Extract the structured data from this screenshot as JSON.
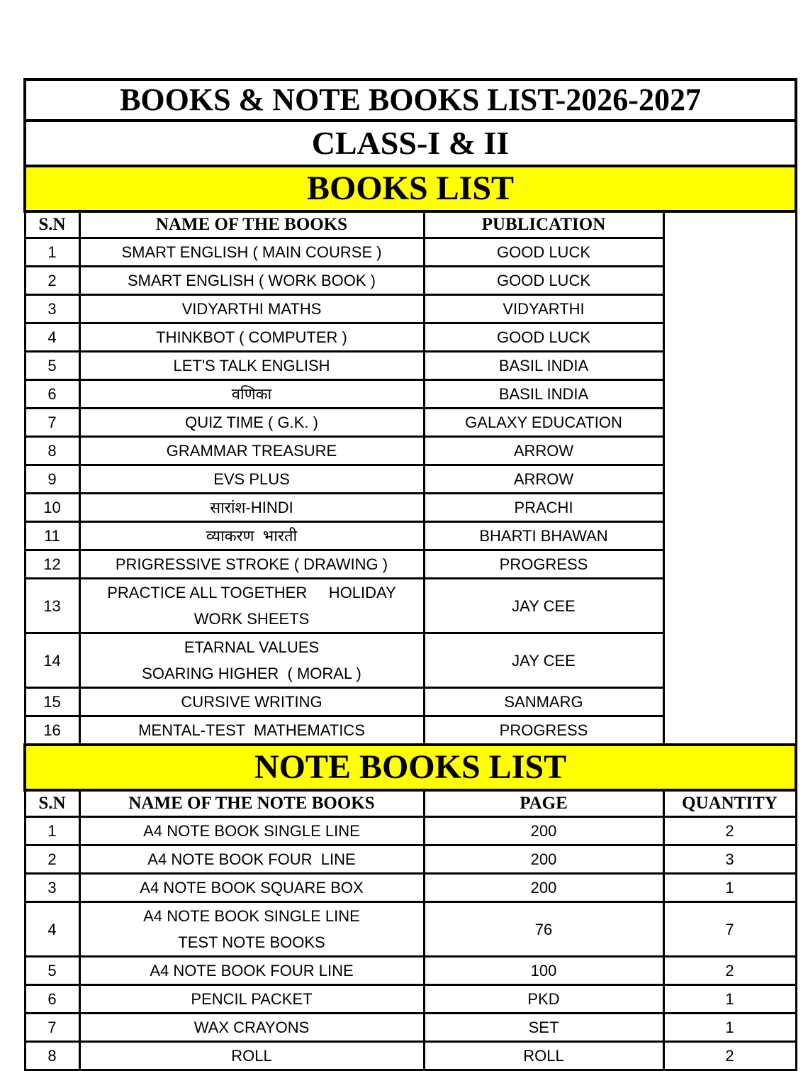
{
  "title": "BOOKS & NOTE BOOKS LIST-2026-2027",
  "class_label": "CLASS-I & II",
  "books_section": {
    "heading": "BOOKS LIST",
    "columns": [
      "S.N",
      "NAME OF THE BOOKS",
      "PUBLICATION"
    ],
    "rows": [
      {
        "sn": "1",
        "name": [
          "SMART ENGLISH ( MAIN COURSE )"
        ],
        "publication": "GOOD LUCK"
      },
      {
        "sn": "2",
        "name": [
          "SMART ENGLISH ( WORK BOOK )"
        ],
        "publication": "GOOD LUCK"
      },
      {
        "sn": "3",
        "name": [
          "VIDYARTHI MATHS"
        ],
        "publication": "VIDYARTHI"
      },
      {
        "sn": "4",
        "name": [
          "THINKBOT ( COMPUTER )"
        ],
        "publication": "GOOD LUCK"
      },
      {
        "sn": "5",
        "name": [
          "LET'S TALK ENGLISH"
        ],
        "publication": "BASIL INDIA"
      },
      {
        "sn": "6",
        "name": [
          "वणिका"
        ],
        "publication": "BASIL INDIA"
      },
      {
        "sn": "7",
        "name": [
          "QUIZ TIME ( G.K. )"
        ],
        "publication": "GALAXY EDUCATION"
      },
      {
        "sn": "8",
        "name": [
          "GRAMMAR TREASURE"
        ],
        "publication": "ARROW"
      },
      {
        "sn": "9",
        "name": [
          "EVS PLUS"
        ],
        "publication": "ARROW"
      },
      {
        "sn": "10",
        "name": [
          "सारांश-HINDI"
        ],
        "publication": "PRACHI"
      },
      {
        "sn": "11",
        "name": [
          "व्याकरण  भारती"
        ],
        "publication": "BHARTI BHAWAN"
      },
      {
        "sn": "12",
        "name": [
          "PRIGRESSIVE STROKE ( DRAWING )"
        ],
        "publication": "PROGRESS"
      },
      {
        "sn": "13",
        "name": [
          "PRACTICE ALL TOGETHER     HOLIDAY",
          "WORK SHEETS"
        ],
        "publication": "JAY CEE"
      },
      {
        "sn": "14",
        "name": [
          "ETARNAL VALUES",
          "SOARING HIGHER  ( MORAL )"
        ],
        "publication": "JAY CEE"
      },
      {
        "sn": "15",
        "name": [
          "CURSIVE WRITING"
        ],
        "publication": "SANMARG"
      },
      {
        "sn": "16",
        "name": [
          "MENTAL-TEST  MATHEMATICS"
        ],
        "publication": "PROGRESS"
      }
    ]
  },
  "notebooks_section": {
    "heading": "NOTE BOOKS LIST",
    "columns": [
      "S.N",
      "NAME OF THE NOTE BOOKS",
      "PAGE",
      "QUANTITY"
    ],
    "rows": [
      {
        "sn": "1",
        "name": [
          "A4 NOTE BOOK SINGLE LINE"
        ],
        "page": "200",
        "quantity": "2"
      },
      {
        "sn": "2",
        "name": [
          "A4 NOTE BOOK FOUR  LINE"
        ],
        "page": "200",
        "quantity": "3"
      },
      {
        "sn": "3",
        "name": [
          "A4 NOTE BOOK SQUARE BOX"
        ],
        "page": "200",
        "quantity": "1"
      },
      {
        "sn": "4",
        "name": [
          "A4 NOTE BOOK SINGLE LINE",
          "TEST NOTE BOOKS"
        ],
        "page": "76",
        "quantity": "7"
      },
      {
        "sn": "5",
        "name": [
          "A4 NOTE BOOK FOUR LINE"
        ],
        "page": "100",
        "quantity": "2"
      },
      {
        "sn": "6",
        "name": [
          "PENCIL PACKET"
        ],
        "page": "PKD",
        "quantity": "1"
      },
      {
        "sn": "7",
        "name": [
          "WAX CRAYONS"
        ],
        "page": "SET",
        "quantity": "1"
      },
      {
        "sn": "8",
        "name": [
          "ROLL"
        ],
        "page": "ROLL",
        "quantity": "2"
      }
    ]
  },
  "colors": {
    "section_highlight": "#ffff00",
    "border": "#000000"
  }
}
